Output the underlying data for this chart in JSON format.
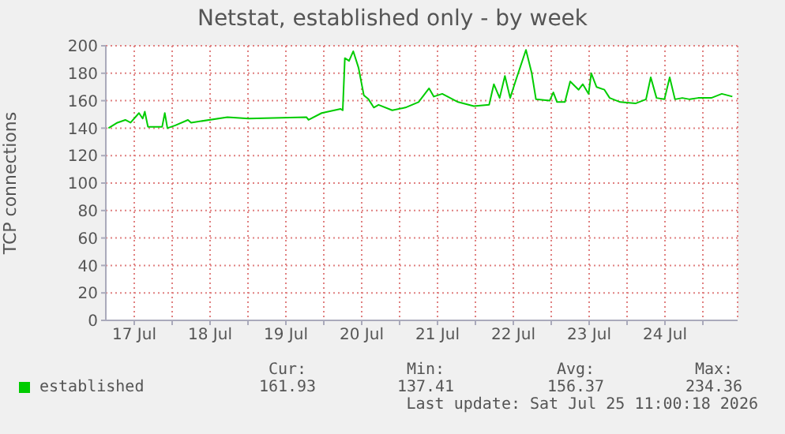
{
  "chart_data": {
    "type": "line",
    "title": "Netstat, established only - by week",
    "ylabel": "TCP connections",
    "x": [
      "2026-07-17T03:50",
      "2026-07-17T06:40",
      "2026-07-17T09:10",
      "2026-07-17T10:50",
      "2026-07-17T13:30",
      "2026-07-17T14:40",
      "2026-07-17T15:20",
      "2026-07-17T16:20",
      "2026-07-17T20:50",
      "2026-07-17T21:40",
      "2026-07-17T22:30",
      "2026-07-18T01:00",
      "2026-07-18T05:00",
      "2026-07-18T06:00",
      "2026-07-18T17:30",
      "2026-07-19T00:10",
      "2026-07-19T18:30",
      "2026-07-19T19:10",
      "2026-07-19T23:20",
      "2026-07-20T05:20",
      "2026-07-20T06:00",
      "2026-07-20T06:40",
      "2026-07-20T08:00",
      "2026-07-20T09:20",
      "2026-07-20T11:00",
      "2026-07-20T12:40",
      "2026-07-20T14:10",
      "2026-07-20T15:50",
      "2026-07-20T17:20",
      "2026-07-20T21:40",
      "2026-07-21T01:50",
      "2026-07-21T06:00",
      "2026-07-21T09:20",
      "2026-07-21T10:50",
      "2026-07-21T13:30",
      "2026-07-21T18:30",
      "2026-07-21T23:30",
      "2026-07-22T04:20",
      "2026-07-22T05:50",
      "2026-07-22T07:40",
      "2026-07-22T09:20",
      "2026-07-22T11:00",
      "2026-07-22T12:40",
      "2026-07-22T16:00",
      "2026-07-22T17:50",
      "2026-07-22T19:10",
      "2026-07-22T23:30",
      "2026-07-23T00:40",
      "2026-07-23T01:50",
      "2026-07-23T04:20",
      "2026-07-23T06:00",
      "2026-07-23T08:40",
      "2026-07-23T10:00",
      "2026-07-23T11:50",
      "2026-07-23T12:40",
      "2026-07-23T14:20",
      "2026-07-23T16:50",
      "2026-07-23T18:30",
      "2026-07-23T21:50",
      "2026-07-24T02:40",
      "2026-07-24T06:00",
      "2026-07-24T07:30",
      "2026-07-24T09:20",
      "2026-07-24T11:50",
      "2026-07-24T13:30",
      "2026-07-24T15:10",
      "2026-07-24T17:30",
      "2026-07-24T19:50",
      "2026-07-24T22:30",
      "2026-07-25T02:40",
      "2026-07-25T06:00",
      "2026-07-25T09:20"
    ],
    "series": [
      {
        "name": "established",
        "color": "#00cc00",
        "values": [
          140,
          144,
          146,
          144,
          151,
          147,
          152,
          141,
          141,
          151,
          140,
          142,
          146,
          144,
          148,
          147,
          148,
          146,
          151,
          154,
          153,
          191,
          189,
          196,
          184,
          164,
          161,
          155,
          157,
          153,
          155,
          159,
          169,
          163,
          165,
          159,
          156,
          157,
          172,
          162,
          178,
          162,
          174,
          197,
          180,
          161,
          160,
          166,
          159,
          159,
          174,
          168,
          172,
          165,
          180,
          170,
          168,
          162,
          159,
          158,
          161,
          177,
          162,
          161,
          177,
          161,
          162,
          161,
          162,
          162,
          165,
          163
        ]
      }
    ],
    "xlim": [
      "2026-07-17T03:00",
      "2026-07-25T11:00"
    ],
    "xticks": [
      {
        "value": "2026-07-17T12:00",
        "label": "17 Jul"
      },
      {
        "value": "2026-07-18T00:00",
        "label": null
      },
      {
        "value": "2026-07-18T12:00",
        "label": "18 Jul"
      },
      {
        "value": "2026-07-19T00:00",
        "label": null
      },
      {
        "value": "2026-07-19T12:00",
        "label": "19 Jul"
      },
      {
        "value": "2026-07-20T00:00",
        "label": null
      },
      {
        "value": "2026-07-20T12:00",
        "label": "20 Jul"
      },
      {
        "value": "2026-07-21T00:00",
        "label": null
      },
      {
        "value": "2026-07-21T12:00",
        "label": "21 Jul"
      },
      {
        "value": "2026-07-22T00:00",
        "label": null
      },
      {
        "value": "2026-07-22T12:00",
        "label": "22 Jul"
      },
      {
        "value": "2026-07-23T00:00",
        "label": null
      },
      {
        "value": "2026-07-23T12:00",
        "label": "23 Jul"
      },
      {
        "value": "2026-07-24T00:00",
        "label": null
      },
      {
        "value": "2026-07-24T12:00",
        "label": "24 Jul"
      },
      {
        "value": "2026-07-25T00:00",
        "label": null
      }
    ],
    "ylim": [
      0,
      200
    ],
    "yticks": [
      0,
      20,
      40,
      60,
      80,
      100,
      120,
      140,
      160,
      180,
      200
    ],
    "grid": true,
    "legend": "bottom left",
    "marker": "none",
    "line_style": "solid",
    "annotations": [
      "Cur:",
      "Min:",
      "Avg:",
      "Max:",
      "161.93",
      "137.41",
      "156.37",
      "234.36",
      "Last update: Sat Jul 25 11:00:18 2026"
    ]
  }
}
